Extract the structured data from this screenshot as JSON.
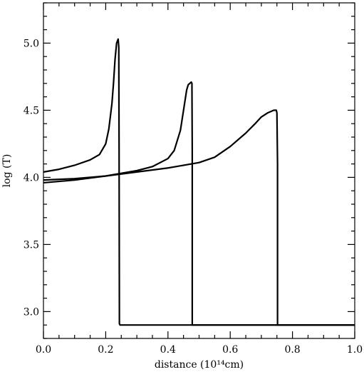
{
  "chart_data": {
    "type": "line",
    "xlabel": "distance (10¹⁴cm)",
    "ylabel": "log (T)",
    "xlim": [
      0.0,
      1.0
    ],
    "ylim": [
      2.8,
      5.3
    ],
    "x_ticks": [
      0.0,
      0.2,
      0.4,
      0.6,
      0.8,
      1.0
    ],
    "x_tick_labels": [
      "0.0",
      "0.2",
      "0.4",
      "0.6",
      "0.8",
      "1.0"
    ],
    "y_ticks": [
      3.0,
      3.5,
      4.0,
      4.5,
      5.0
    ],
    "y_tick_labels": [
      "3.0",
      "3.5",
      "4.0",
      "4.5",
      "5.0"
    ],
    "grid": false,
    "line_color": "#000000",
    "series": [
      {
        "x": [
          0.0,
          0.05,
          0.1,
          0.15,
          0.18,
          0.2,
          0.21,
          0.22,
          0.225,
          0.23,
          0.235,
          0.24,
          0.242,
          0.243,
          0.244,
          0.246,
          0.3,
          0.5,
          0.7,
          0.9,
          1.0
        ],
        "y": [
          4.04,
          4.06,
          4.09,
          4.13,
          4.17,
          4.25,
          4.36,
          4.55,
          4.7,
          4.88,
          5.0,
          5.03,
          4.97,
          4.2,
          2.91,
          2.9,
          2.9,
          2.9,
          2.9,
          2.9,
          2.9
        ]
      },
      {
        "x": [
          0.0,
          0.1,
          0.2,
          0.3,
          0.35,
          0.4,
          0.42,
          0.44,
          0.45,
          0.46,
          0.465,
          0.47,
          0.475,
          0.477,
          0.478,
          0.478,
          0.6,
          0.8,
          1.0
        ],
        "y": [
          3.96,
          3.98,
          4.01,
          4.05,
          4.08,
          4.14,
          4.2,
          4.35,
          4.5,
          4.65,
          4.69,
          4.7,
          4.71,
          4.7,
          4.2,
          2.9,
          2.9,
          2.9,
          2.9
        ]
      },
      {
        "x": [
          0.0,
          0.1,
          0.2,
          0.3,
          0.4,
          0.5,
          0.55,
          0.6,
          0.65,
          0.68,
          0.7,
          0.72,
          0.74,
          0.745,
          0.748,
          0.75,
          0.752,
          0.752,
          0.9,
          1.0
        ],
        "y": [
          3.98,
          3.99,
          4.01,
          4.04,
          4.07,
          4.11,
          4.15,
          4.23,
          4.33,
          4.4,
          4.45,
          4.48,
          4.5,
          4.5,
          4.5,
          4.48,
          4.1,
          2.9,
          2.9,
          2.9
        ]
      }
    ]
  }
}
